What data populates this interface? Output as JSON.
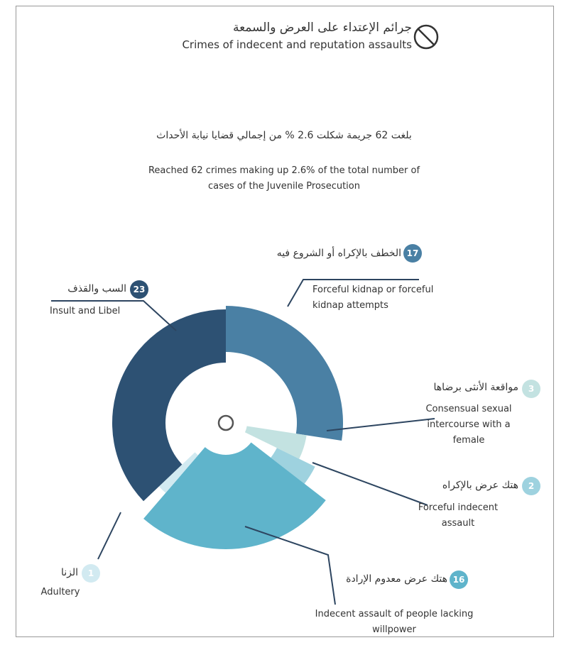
{
  "chart_data": {
    "type": "pie",
    "title_ar": "جرائم الإعتداء على العرض والسمعة",
    "title": "Crimes of indecent and reputation assaults",
    "subtitle_ar": "بلغت 62 جريمة شكلت 2.6 % من إجمالي قضايا نيابة الأحداث",
    "subtitle": "Reached 62 crimes making up 2.6% of the total number of cases of the Juvenile Prosecution",
    "categories": [
      "Forceful kidnap or forceful kidnap attempts",
      "Consensual sexual intercourse with a female",
      "Forceful indecent assault",
      "Indecent assault of people lacking willpower",
      "Adultery",
      "Insult and Libel"
    ],
    "categories_ar": [
      "الخطف بالإكراه أو الشروع فيه",
      "مواقعة الأنثى برضاها",
      "هتك عرض بالإكراه",
      "هتك عرض معدوم الإرادة",
      "الزنا",
      "السب والقذف"
    ],
    "values": [
      17,
      3,
      2,
      16,
      1,
      23
    ],
    "colors": [
      "#4a80a4",
      "#c3e2e1",
      "#9ed2df",
      "#5fb4cb",
      "#d2eaf1",
      "#2d5173"
    ]
  }
}
